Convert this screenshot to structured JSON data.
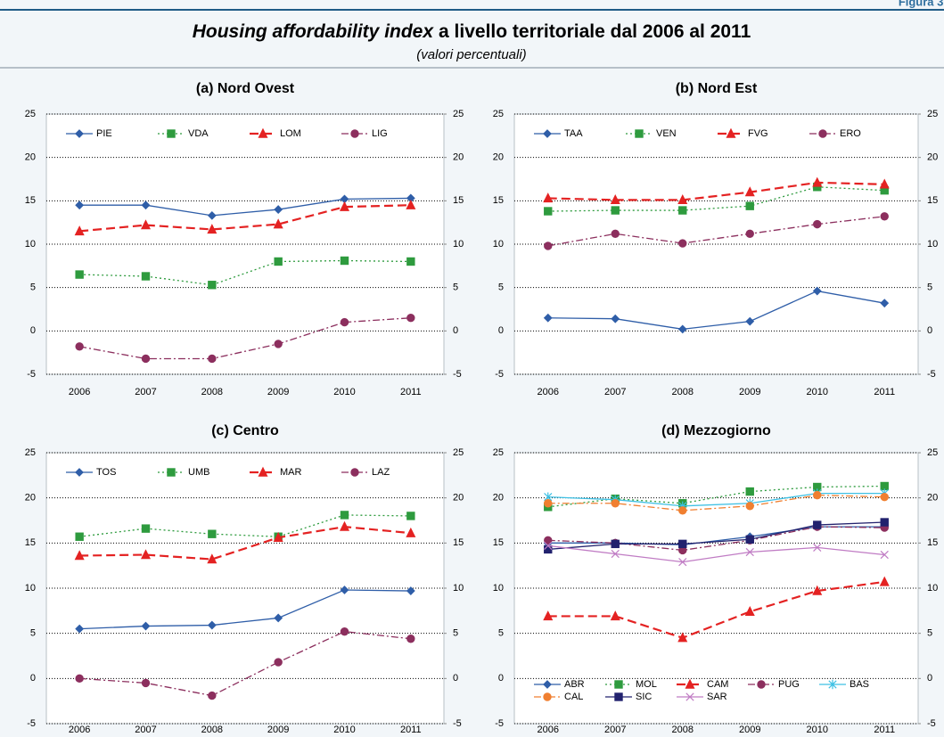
{
  "header": {
    "figure_label": "Figura 3.",
    "title_italic": "Housing affordability index",
    "title_rest": "a livello territoriale dal 2006 al 2011",
    "subtitle": "(valori percentuali)"
  },
  "chart_data": [
    {
      "type": "line",
      "title": "(a) Nord Ovest",
      "categories": [
        "2006",
        "2007",
        "2008",
        "2009",
        "2010",
        "2011"
      ],
      "ylim": [
        -5,
        25
      ],
      "yticks": [
        -5,
        0,
        5,
        10,
        15,
        20,
        25
      ],
      "y2lim": [
        -5,
        25
      ],
      "y2ticks": [
        -5,
        0,
        5,
        10,
        15,
        20,
        25
      ],
      "grid": true,
      "legend": "top-left",
      "series": [
        {
          "name": "PIE",
          "color": "#2f5ea8",
          "marker": "diamond",
          "dash": "solid",
          "values": [
            14.5,
            14.5,
            13.3,
            14.0,
            15.2,
            15.3
          ]
        },
        {
          "name": "VDA",
          "color": "#2e9b3e",
          "marker": "square",
          "dash": "dotted",
          "values": [
            6.5,
            6.3,
            5.3,
            8.0,
            8.1,
            8.0
          ]
        },
        {
          "name": "LOM",
          "color": "#e42222",
          "marker": "triangle",
          "dash": "dashed",
          "values": [
            11.5,
            12.2,
            11.7,
            12.3,
            14.3,
            14.5
          ]
        },
        {
          "name": "LIG",
          "color": "#8c2f5e",
          "marker": "circle",
          "dash": "dashdot",
          "values": [
            -1.8,
            -3.2,
            -3.2,
            -1.5,
            1.0,
            1.5
          ]
        }
      ]
    },
    {
      "type": "line",
      "title": "(b) Nord Est",
      "categories": [
        "2006",
        "2007",
        "2008",
        "2009",
        "2010",
        "2011"
      ],
      "ylim": [
        -5,
        25
      ],
      "yticks": [
        -5,
        0,
        5,
        10,
        15,
        20,
        25
      ],
      "y2lim": [
        -5,
        25
      ],
      "y2ticks": [
        -5,
        0,
        5,
        10,
        15,
        20,
        25
      ],
      "grid": true,
      "legend": "top-left",
      "series": [
        {
          "name": "TAA",
          "color": "#2f5ea8",
          "marker": "diamond",
          "dash": "solid",
          "values": [
            1.5,
            1.4,
            0.2,
            1.1,
            4.6,
            3.2
          ]
        },
        {
          "name": "VEN",
          "color": "#2e9b3e",
          "marker": "square",
          "dash": "dotted",
          "values": [
            13.8,
            13.9,
            13.9,
            14.4,
            16.6,
            16.2
          ]
        },
        {
          "name": "FVG",
          "color": "#e42222",
          "marker": "triangle",
          "dash": "dashed",
          "values": [
            15.3,
            15.1,
            15.1,
            16.0,
            17.1,
            16.9
          ]
        },
        {
          "name": "ERO",
          "color": "#8c2f5e",
          "marker": "circle",
          "dash": "dashdot",
          "values": [
            9.8,
            11.2,
            10.1,
            11.2,
            12.3,
            13.2
          ]
        }
      ]
    },
    {
      "type": "line",
      "title": "(c) Centro",
      "categories": [
        "2006",
        "2007",
        "2008",
        "2009",
        "2010",
        "2011"
      ],
      "ylim": [
        -5,
        25
      ],
      "yticks": [
        -5,
        0,
        5,
        10,
        15,
        20,
        25
      ],
      "y2lim": [
        -5,
        25
      ],
      "y2ticks": [
        -5,
        0,
        5,
        10,
        15,
        20,
        25
      ],
      "grid": true,
      "legend": "top-left",
      "series": [
        {
          "name": "TOS",
          "color": "#2f5ea8",
          "marker": "diamond",
          "dash": "solid",
          "values": [
            5.5,
            5.8,
            5.9,
            6.7,
            9.8,
            9.7
          ]
        },
        {
          "name": "UMB",
          "color": "#2e9b3e",
          "marker": "square",
          "dash": "dotted",
          "values": [
            15.7,
            16.6,
            16.0,
            15.7,
            18.1,
            18.0
          ]
        },
        {
          "name": "MAR",
          "color": "#e42222",
          "marker": "triangle",
          "dash": "dashed",
          "values": [
            13.6,
            13.7,
            13.2,
            15.6,
            16.8,
            16.1
          ]
        },
        {
          "name": "LAZ",
          "color": "#8c2f5e",
          "marker": "circle",
          "dash": "dashdot",
          "values": [
            0.0,
            -0.5,
            -1.9,
            1.8,
            5.2,
            4.4
          ]
        }
      ]
    },
    {
      "type": "line",
      "title": "(d) Mezzogiorno",
      "categories": [
        "2006",
        "2007",
        "2008",
        "2009",
        "2010",
        "2011"
      ],
      "ylim": [
        -5,
        25
      ],
      "yticks": [
        -5,
        0,
        5,
        10,
        15,
        20,
        25
      ],
      "y2lim": [
        -5,
        25
      ],
      "y2ticks": [
        -5,
        0,
        5,
        10,
        15,
        20,
        25
      ],
      "grid": true,
      "legend": "bottom-left",
      "series": [
        {
          "name": "ABR",
          "color": "#2f5ea8",
          "marker": "diamond",
          "dash": "solid",
          "values": [
            15.0,
            15.0,
            14.8,
            15.7,
            16.8,
            16.8
          ]
        },
        {
          "name": "MOL",
          "color": "#2e9b3e",
          "marker": "square",
          "dash": "dotted",
          "values": [
            19.0,
            19.9,
            19.4,
            20.7,
            21.2,
            21.3
          ]
        },
        {
          "name": "CAM",
          "color": "#e42222",
          "marker": "triangle",
          "dash": "dashed",
          "values": [
            6.9,
            6.9,
            4.5,
            7.4,
            9.7,
            10.7
          ]
        },
        {
          "name": "PUG",
          "color": "#8c2f5e",
          "marker": "circle",
          "dash": "dashdot",
          "values": [
            15.3,
            15.0,
            14.2,
            15.3,
            16.8,
            16.7
          ]
        },
        {
          "name": "BAS",
          "color": "#3ec0e4",
          "marker": "asterisk",
          "dash": "solid",
          "values": [
            20.1,
            19.8,
            19.1,
            19.4,
            20.5,
            20.5
          ]
        },
        {
          "name": "CAL",
          "color": "#f07f30",
          "marker": "circle",
          "dash": "dashdot",
          "values": [
            19.4,
            19.4,
            18.6,
            19.1,
            20.3,
            20.1
          ]
        },
        {
          "name": "SIC",
          "color": "#22226e",
          "marker": "square",
          "dash": "solid",
          "values": [
            14.3,
            14.9,
            14.9,
            15.4,
            17.0,
            17.3
          ]
        },
        {
          "name": "SAR",
          "color": "#c07cc4",
          "marker": "cross",
          "dash": "solid",
          "values": [
            14.7,
            13.8,
            12.9,
            14.0,
            14.5,
            13.7
          ]
        }
      ]
    }
  ]
}
